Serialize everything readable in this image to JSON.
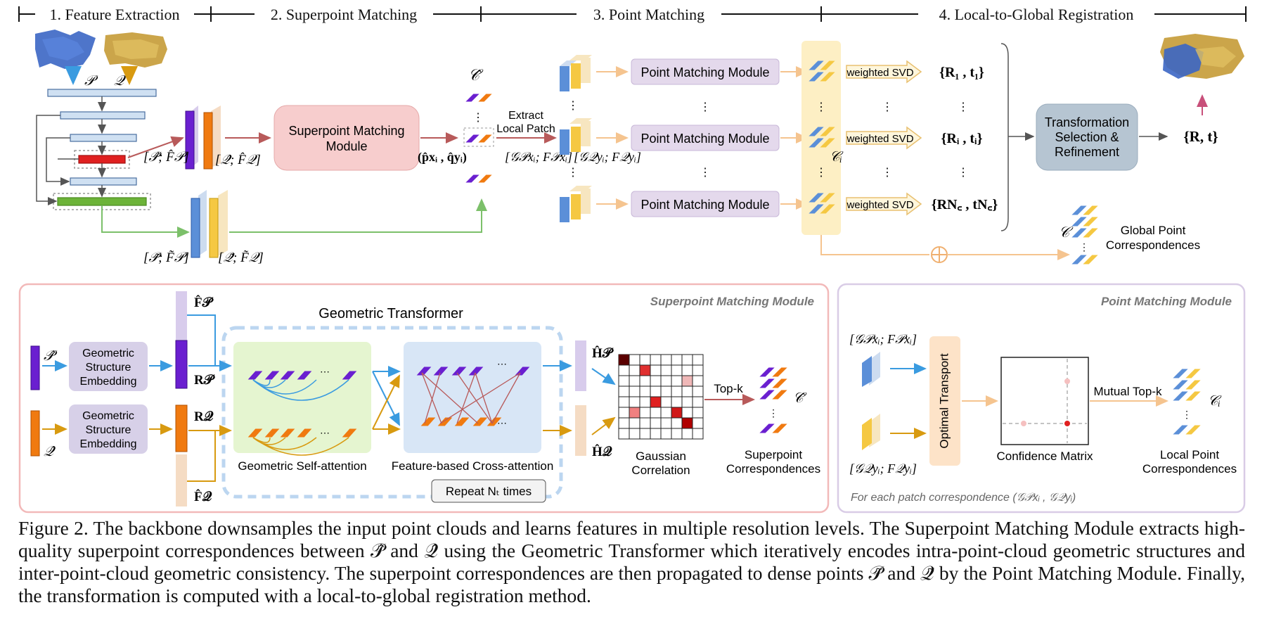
{
  "stages": {
    "s1": "1. Feature Extraction",
    "s2": "2. Superpoint Matching",
    "s3": "3. Point Matching",
    "s4": "4. Local-to-Global Registration"
  },
  "top": {
    "P": "𝒫",
    "Q": "𝒬",
    "hatC": "𝒞̂",
    "hatPF": "[𝒫̂; F̂𝒫]",
    "hatQF": "[𝒬̂; F̂𝒬]",
    "tildePF": "[𝒫̃; F̃𝒫]",
    "tildeQF": "[𝒬̃; F̃𝒬]",
    "smm": [
      "Superpoint Matching",
      "Module"
    ],
    "pxqy": "(p̂xᵢ , q̂yᵢ)",
    "extract": [
      "Extract",
      "Local Patch"
    ],
    "GxF": "[𝒢𝒫xᵢ; F𝒫xᵢ]",
    "GyF": "[𝒢𝒬yᵢ; F𝒬yᵢ]",
    "pmm": "Point Matching Module",
    "Ci": "𝒞ᵢ",
    "wsvd": "weighted SVD",
    "R1": "{R₁ , t₁}",
    "Ri": "{Rᵢ , tᵢ}",
    "RNc": "{RN꜀ , tN꜀}",
    "tsr": [
      "Transformation",
      "Selection &",
      "Refinement"
    ],
    "Rt": "{R, t}",
    "C": "𝒞",
    "gpc": [
      "Global Point",
      "Correspondences"
    ],
    "dots": "⋮"
  },
  "smm_panel": {
    "title": "Superpoint Matching Module",
    "geo_transformer": "Geometric Transformer",
    "hatP": "𝒫̂",
    "hatQ": "𝒬̂",
    "gse": [
      "Geometric",
      "Structure",
      "Embedding"
    ],
    "hatFP": "F̂𝒫",
    "hatFQ": "F̂𝒬",
    "RP": "R𝒫",
    "RQ": "R𝒬",
    "self_attn": "Geometric Self-attention",
    "cross_attn": "Feature-based Cross-attention",
    "repeat": "Repeat Nₜ times",
    "HP": "Ĥ𝒫",
    "HQ": "Ĥ𝒬",
    "topk": "Top-k",
    "gauss": [
      "Gaussian",
      "Correlation"
    ],
    "hatC": "𝒞̂",
    "sc": [
      "Superpoint",
      "Correspondences"
    ],
    "ellipsis": "⋯"
  },
  "pmm_panel": {
    "title": "Point Matching Module",
    "GxF": "[𝒢𝒫xᵢ; F𝒫xᵢ]",
    "GyF": "[𝒢𝒬yᵢ; F𝒬yᵢ]",
    "ot": "Optimal Transport",
    "cm": "Confidence Matrix",
    "mtk": "Mutual Top-k",
    "Ci": "𝒞ᵢ",
    "lpc": [
      "Local Point",
      "Correspondences"
    ],
    "foreach": "For each patch correspondence (𝒢𝒫xᵢ , 𝒢𝒬yᵢ)"
  },
  "caption": "Figure 2. The backbone downsamples the input point clouds and learns features in multiple resolution levels. The Superpoint Matching Module extracts high-quality superpoint correspondences between 𝒫̂ and 𝒬̂ using the Geometric Transformer which iteratively encodes intra-point-cloud geometric structures and inter-point-cloud geometric consistency. The superpoint correspondences are then propagated to dense points 𝒫̃ and 𝒬̃ by the Point Matching Module. Finally, the transformation is computed with a local-to-global registration method.",
  "colors": {
    "purple": "#6a1fd0",
    "orange": "#f07a10",
    "blue": "#5b8fd8",
    "yellow": "#f5c842",
    "red_arrow": "#b85a5a",
    "green_arrow": "#7cc06a",
    "peach_arrow": "#f5c48f",
    "smm_fill": "#f7cdcd",
    "pmm_fill": "#e4d9ec",
    "tsr_fill": "#b6c5d2",
    "cyan_arrow": "#3a9be0",
    "gold_arrow": "#d89a10"
  }
}
